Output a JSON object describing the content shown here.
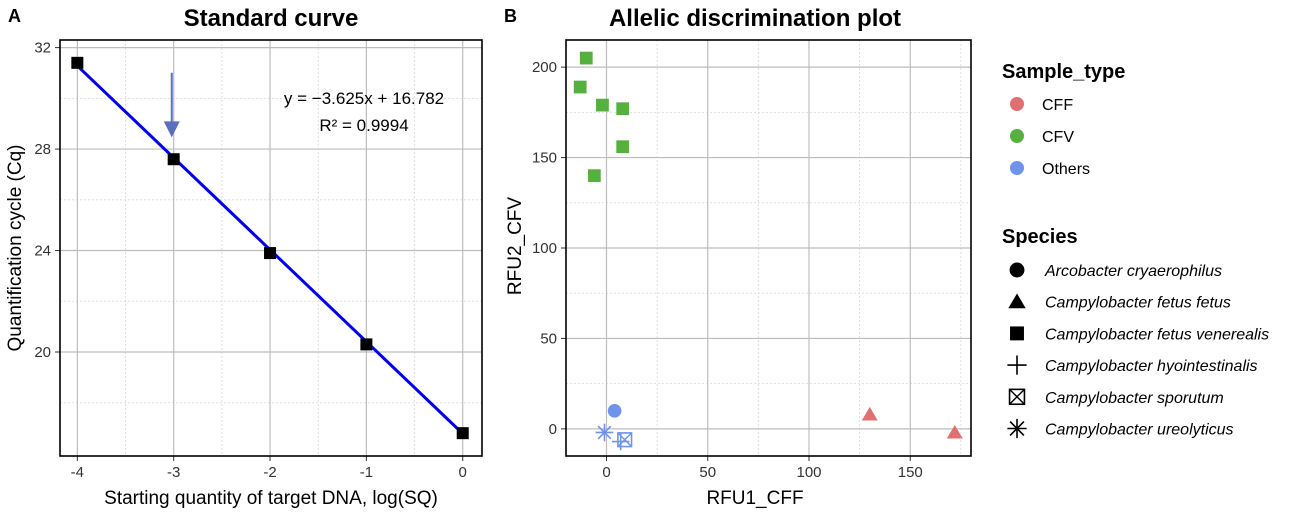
{
  "panel_a_letter": "A",
  "panel_b_letter": "B",
  "chart_data": [
    {
      "type": "scatter",
      "title": "Standard curve",
      "xlabel": "Starting quantity of target DNA, log(SQ)",
      "ylabel": "Quantification cycle (Cq)",
      "xlim": [
        -4.18,
        0.2
      ],
      "ylim": [
        15.9,
        32.3
      ],
      "x_ticks": [
        -4,
        -3,
        -2,
        -1,
        0
      ],
      "x_tick_labels": [
        "-4",
        "-3",
        "-2",
        "-1",
        "0"
      ],
      "y_ticks": [
        20,
        24,
        28,
        32
      ],
      "y_tick_labels": [
        "20",
        "24",
        "28",
        "32"
      ],
      "points": [
        {
          "x": -4,
          "y": 31.4
        },
        {
          "x": -3,
          "y": 27.6
        },
        {
          "x": -2,
          "y": 23.9
        },
        {
          "x": -1,
          "y": 20.3
        },
        {
          "x": 0,
          "y": 16.8
        }
      ],
      "fit": {
        "slope": -3.625,
        "intercept": 16.782
      },
      "annotation_equation": "y = −3.625x + 16.782",
      "annotation_r2": "R² = 0.9994",
      "arrow_marker": {
        "x": -3.02,
        "y_from": 30.3,
        "y_to": 28.7
      },
      "colors": {
        "line": "#0000ee",
        "arrow": "#5b6fbf",
        "point": "#000000",
        "grid": "#bdbdbd"
      }
    },
    {
      "type": "scatter",
      "title": "Allelic discrimination plot",
      "xlabel": "RFU1_CFF",
      "ylabel": "RFU2_CFV",
      "xlim": [
        -20,
        180
      ],
      "ylim": [
        -15,
        215
      ],
      "x_ticks": [
        0,
        50,
        100,
        150
      ],
      "x_tick_labels": [
        "0",
        "50",
        "100",
        "150"
      ],
      "y_ticks": [
        0,
        50,
        100,
        150,
        200
      ],
      "y_tick_labels": [
        "0",
        "50",
        "100",
        "150",
        "200"
      ],
      "points": [
        {
          "x": -10,
          "y": 205,
          "sample_type": "CFV",
          "species": "Campylobacter fetus venerealis"
        },
        {
          "x": -13,
          "y": 189,
          "sample_type": "CFV",
          "species": "Campylobacter fetus venerealis"
        },
        {
          "x": -2,
          "y": 179,
          "sample_type": "CFV",
          "species": "Campylobacter fetus venerealis"
        },
        {
          "x": 8,
          "y": 177,
          "sample_type": "CFV",
          "species": "Campylobacter fetus venerealis"
        },
        {
          "x": 8,
          "y": 156,
          "sample_type": "CFV",
          "species": "Campylobacter fetus venerealis"
        },
        {
          "x": -6,
          "y": 140,
          "sample_type": "CFV",
          "species": "Campylobacter fetus venerealis"
        },
        {
          "x": 4,
          "y": 10,
          "sample_type": "Others",
          "species": "Arcobacter cryaerophilus"
        },
        {
          "x": -1,
          "y": -2,
          "sample_type": "Others",
          "species": "Campylobacter ureolyticus"
        },
        {
          "x": 7,
          "y": -7,
          "sample_type": "Others",
          "species": "Campylobacter hyointestinalis"
        },
        {
          "x": 9,
          "y": -6,
          "sample_type": "Others",
          "species": "Campylobacter sporutum"
        },
        {
          "x": 130,
          "y": 8,
          "sample_type": "CFF",
          "species": "Campylobacter fetus fetus"
        },
        {
          "x": 172,
          "y": -2,
          "sample_type": "CFF",
          "species": "Campylobacter fetus fetus"
        }
      ],
      "legend_placement": "right",
      "legend_sample_type": {
        "title": "Sample_type",
        "items": [
          {
            "label": "CFF",
            "color": "#e07070"
          },
          {
            "label": "CFV",
            "color": "#55b040"
          },
          {
            "label": "Others",
            "color": "#6f93ea"
          }
        ]
      },
      "legend_species": {
        "title": "Species",
        "items": [
          {
            "label": "Arcobacter cryaerophilus",
            "shape": "circle"
          },
          {
            "label": "Campylobacter fetus fetus",
            "shape": "triangle"
          },
          {
            "label": "Campylobacter fetus venerealis",
            "shape": "square"
          },
          {
            "label": "Campylobacter hyointestinalis",
            "shape": "plus"
          },
          {
            "label": "Campylobacter sporutum",
            "shape": "boxx"
          },
          {
            "label": "Campylobacter ureolyticus",
            "shape": "asterisk"
          }
        ]
      }
    }
  ]
}
